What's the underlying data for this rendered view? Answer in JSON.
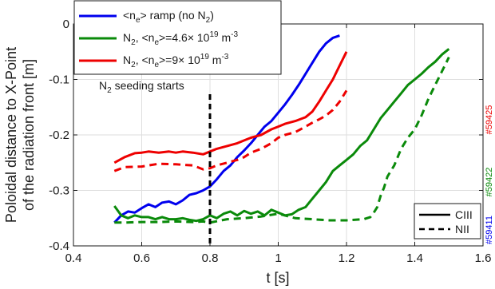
{
  "chart_data": {
    "type": "line",
    "xlabel": "t [s]",
    "ylabel_line1": "Poloidal distance to X-Point",
    "ylabel_line2": "of the radiation front [m]",
    "xlim": [
      0.4,
      1.6
    ],
    "ylim": [
      -0.4,
      0
    ],
    "xticks": [
      0.4,
      0.6,
      0.8,
      1,
      1.2,
      1.4,
      1.6
    ],
    "yticks": [
      -0.4,
      -0.3,
      -0.2,
      -0.1,
      0
    ],
    "xtick_labels": [
      "0.4",
      "0.6",
      "0.8",
      "1",
      "1.2",
      "1.4",
      "1.6"
    ],
    "ytick_labels": [
      "-0.4",
      "-0.3",
      "-0.2",
      "-0.1",
      "0"
    ],
    "grid": true,
    "legend_position": "top-left",
    "legend": [
      {
        "pre": "<n",
        "sub": "e",
        "post": "> ramp (no N",
        "sub2": "2",
        "post2": ")",
        "color": "#0000ee"
      },
      {
        "pre": "N",
        "sub": "2",
        "post": ", <n",
        "sub2": "e",
        "post2": ">=4.6× 10",
        "sup": "19",
        "post3": " m",
        "sup2": "-3",
        "color": "#0a8a0a"
      },
      {
        "pre": "N",
        "sub": "2",
        "post": ", <n",
        "sub2": "e",
        "post2": ">=9× 10",
        "sup": "19",
        "post3": " m",
        "sup2": "-3",
        "color": "#ee0000"
      }
    ],
    "style_legend": [
      {
        "label": "CIII",
        "dash": "solid"
      },
      {
        "label": "NII",
        "dash": "dashed"
      }
    ],
    "annotation": {
      "pre": "N",
      "sub": "2",
      "post": " seeding starts",
      "x": 0.8
    },
    "shot_labels": [
      {
        "text": "#59425",
        "color": "#ee0000"
      },
      {
        "text": "#59422",
        "color": "#0a8a0a"
      },
      {
        "text": "#59411",
        "color": "#0000ee"
      }
    ],
    "series": [
      {
        "color": "#0000ee",
        "dash": "solid",
        "x": [
          0.52,
          0.54,
          0.56,
          0.58,
          0.6,
          0.62,
          0.64,
          0.66,
          0.68,
          0.7,
          0.72,
          0.74,
          0.76,
          0.78,
          0.8,
          0.82,
          0.84,
          0.86,
          0.88,
          0.9,
          0.92,
          0.94,
          0.96,
          0.98,
          1.0,
          1.02,
          1.04,
          1.06,
          1.08,
          1.1,
          1.12,
          1.14,
          1.16,
          1.18
        ],
        "values": [
          -0.358,
          -0.345,
          -0.338,
          -0.34,
          -0.332,
          -0.325,
          -0.33,
          -0.322,
          -0.32,
          -0.325,
          -0.318,
          -0.308,
          -0.305,
          -0.3,
          -0.293,
          -0.28,
          -0.265,
          -0.255,
          -0.24,
          -0.228,
          -0.215,
          -0.2,
          -0.185,
          -0.175,
          -0.16,
          -0.145,
          -0.128,
          -0.11,
          -0.09,
          -0.07,
          -0.05,
          -0.035,
          -0.025,
          -0.021
        ]
      },
      {
        "color": "#0a8a0a",
        "dash": "solid",
        "x": [
          0.52,
          0.54,
          0.56,
          0.58,
          0.6,
          0.62,
          0.64,
          0.66,
          0.68,
          0.7,
          0.72,
          0.74,
          0.76,
          0.78,
          0.8,
          0.82,
          0.84,
          0.86,
          0.88,
          0.9,
          0.92,
          0.94,
          0.96,
          0.98,
          1.0,
          1.02,
          1.04,
          1.06,
          1.08,
          1.1,
          1.12,
          1.14,
          1.16,
          1.18,
          1.2,
          1.22,
          1.24,
          1.26,
          1.28,
          1.3,
          1.32,
          1.34,
          1.36,
          1.38,
          1.4,
          1.42,
          1.44,
          1.46,
          1.48,
          1.5
        ],
        "values": [
          -0.328,
          -0.345,
          -0.35,
          -0.345,
          -0.348,
          -0.348,
          -0.352,
          -0.348,
          -0.352,
          -0.352,
          -0.35,
          -0.353,
          -0.355,
          -0.352,
          -0.345,
          -0.35,
          -0.342,
          -0.338,
          -0.345,
          -0.337,
          -0.342,
          -0.338,
          -0.345,
          -0.335,
          -0.34,
          -0.345,
          -0.343,
          -0.335,
          -0.33,
          -0.315,
          -0.3,
          -0.285,
          -0.265,
          -0.255,
          -0.245,
          -0.235,
          -0.22,
          -0.21,
          -0.19,
          -0.17,
          -0.155,
          -0.14,
          -0.125,
          -0.11,
          -0.1,
          -0.09,
          -0.078,
          -0.068,
          -0.055,
          -0.045
        ]
      },
      {
        "color": "#0a8a0a",
        "dash": "dashed",
        "x": [
          0.52,
          0.55,
          0.6,
          0.65,
          0.7,
          0.75,
          0.78,
          0.8,
          0.85,
          0.9,
          0.95,
          1.0,
          1.05,
          1.1,
          1.15,
          1.2,
          1.25,
          1.27,
          1.28,
          1.29,
          1.3,
          1.31,
          1.32,
          1.34,
          1.36,
          1.38,
          1.4,
          1.42,
          1.44,
          1.46,
          1.48,
          1.5
        ],
        "values": [
          -0.358,
          -0.358,
          -0.357,
          -0.357,
          -0.356,
          -0.357,
          -0.356,
          -0.358,
          -0.352,
          -0.35,
          -0.347,
          -0.342,
          -0.35,
          -0.352,
          -0.354,
          -0.354,
          -0.352,
          -0.348,
          -0.34,
          -0.33,
          -0.31,
          -0.295,
          -0.275,
          -0.255,
          -0.225,
          -0.205,
          -0.19,
          -0.165,
          -0.135,
          -0.11,
          -0.085,
          -0.06
        ]
      },
      {
        "color": "#ee0000",
        "dash": "solid",
        "x": [
          0.52,
          0.55,
          0.58,
          0.6,
          0.62,
          0.65,
          0.68,
          0.7,
          0.72,
          0.75,
          0.78,
          0.8,
          0.82,
          0.85,
          0.88,
          0.9,
          0.92,
          0.95,
          0.98,
          1.0,
          1.02,
          1.05,
          1.08,
          1.1,
          1.12,
          1.14,
          1.16,
          1.18,
          1.2
        ],
        "values": [
          -0.25,
          -0.24,
          -0.233,
          -0.232,
          -0.23,
          -0.232,
          -0.23,
          -0.232,
          -0.23,
          -0.232,
          -0.235,
          -0.23,
          -0.225,
          -0.22,
          -0.215,
          -0.21,
          -0.205,
          -0.2,
          -0.19,
          -0.185,
          -0.18,
          -0.175,
          -0.168,
          -0.158,
          -0.14,
          -0.12,
          -0.1,
          -0.075,
          -0.05
        ]
      },
      {
        "color": "#ee0000",
        "dash": "dashed",
        "x": [
          0.52,
          0.55,
          0.6,
          0.65,
          0.7,
          0.75,
          0.78,
          0.8,
          0.82,
          0.85,
          0.88,
          0.9,
          0.92,
          0.95,
          0.98,
          1.0,
          1.02,
          1.05,
          1.08,
          1.1,
          1.12,
          1.14,
          1.16,
          1.18,
          1.2
        ],
        "values": [
          -0.265,
          -0.258,
          -0.257,
          -0.252,
          -0.253,
          -0.255,
          -0.262,
          -0.26,
          -0.255,
          -0.25,
          -0.245,
          -0.24,
          -0.232,
          -0.225,
          -0.215,
          -0.205,
          -0.2,
          -0.195,
          -0.185,
          -0.178,
          -0.172,
          -0.165,
          -0.155,
          -0.14,
          -0.12
        ]
      }
    ]
  }
}
